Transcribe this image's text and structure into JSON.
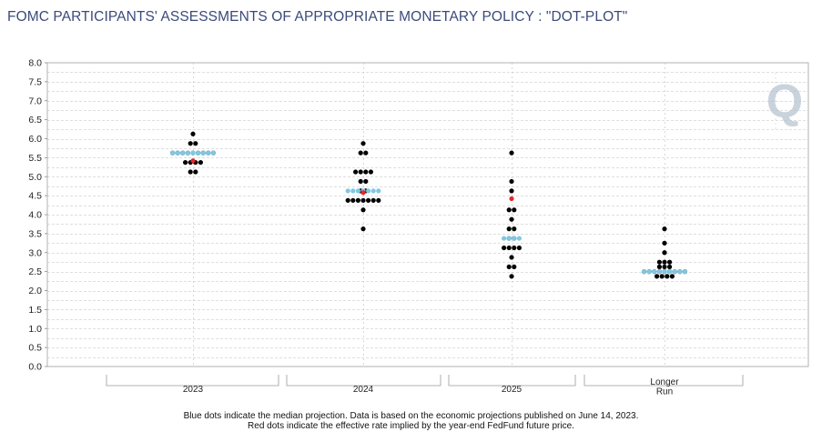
{
  "title": "FOMC PARTICIPANTS' ASSESSMENTS OF APPROPRIATE MONETARY POLICY : \"DOT-PLOT\"",
  "footnotes": [
    "Blue dots indicate the median projection. Data is based on the economic projections published on June 14, 2023.",
    "Red dots indicate the effective rate implied by the year-end FedFund future price."
  ],
  "watermark": {
    "text": "Q",
    "color": "#c9d3dc"
  },
  "chart_data": {
    "type": "scatter",
    "title": "FOMC PARTICIPANTS' ASSESSMENTS OF APPROPRIATE MONETARY POLICY : \"DOT-PLOT\"",
    "xlabel": "",
    "ylabel": "",
    "ylim": [
      0,
      8
    ],
    "ytick_step": 0.25,
    "ytick_labels": [
      "0.0",
      "0.5",
      "1.0",
      "1.5",
      "2.0",
      "2.5",
      "3.0",
      "3.5",
      "4.0",
      "4.5",
      "5.0",
      "5.5",
      "6.0",
      "6.5",
      "7.0",
      "7.5",
      "8.0"
    ],
    "grid": true,
    "colors": {
      "participant": "#000000",
      "median": "#7ec8e3",
      "futures": "#e8262a",
      "grid": "#bfbfbf"
    },
    "categories": [
      {
        "label": [
          "2023"
        ],
        "participants": [
          {
            "rate": 6.125,
            "count": 1
          },
          {
            "rate": 5.875,
            "count": 2
          },
          {
            "rate": 5.625,
            "count": 9
          },
          {
            "rate": 5.375,
            "count": 4
          },
          {
            "rate": 5.125,
            "count": 2
          }
        ],
        "median": 5.625,
        "futures": 5.42
      },
      {
        "label": [
          "2024"
        ],
        "participants": [
          {
            "rate": 5.875,
            "count": 1
          },
          {
            "rate": 5.625,
            "count": 2
          },
          {
            "rate": 5.125,
            "count": 4
          },
          {
            "rate": 4.875,
            "count": 2
          },
          {
            "rate": 4.625,
            "count": 2
          },
          {
            "rate": 4.375,
            "count": 7
          },
          {
            "rate": 4.125,
            "count": 1
          },
          {
            "rate": 3.625,
            "count": 1
          }
        ],
        "median": 4.625,
        "futures": 4.58
      },
      {
        "label": [
          "2025"
        ],
        "participants": [
          {
            "rate": 5.625,
            "count": 1
          },
          {
            "rate": 4.875,
            "count": 1
          },
          {
            "rate": 4.625,
            "count": 1
          },
          {
            "rate": 4.125,
            "count": 2
          },
          {
            "rate": 3.875,
            "count": 1
          },
          {
            "rate": 3.625,
            "count": 2
          },
          {
            "rate": 3.375,
            "count": 2
          },
          {
            "rate": 3.125,
            "count": 4
          },
          {
            "rate": 2.875,
            "count": 1
          },
          {
            "rate": 2.625,
            "count": 2
          },
          {
            "rate": 2.375,
            "count": 1
          }
        ],
        "median": 3.375,
        "futures": 4.42
      },
      {
        "label": [
          "Longer",
          "Run"
        ],
        "participants": [
          {
            "rate": 3.625,
            "count": 1
          },
          {
            "rate": 3.25,
            "count": 1
          },
          {
            "rate": 3.0,
            "count": 1
          },
          {
            "rate": 2.75,
            "count": 3
          },
          {
            "rate": 2.625,
            "count": 3
          },
          {
            "rate": 2.5,
            "count": 9
          },
          {
            "rate": 2.375,
            "count": 4
          }
        ],
        "median": 2.5,
        "futures": null
      }
    ]
  }
}
